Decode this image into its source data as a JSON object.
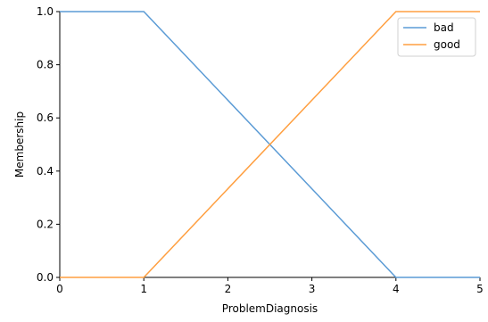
{
  "chart_data": {
    "type": "line",
    "xlabel": "ProblemDiagnosis",
    "ylabel": "Membership",
    "xlim": [
      0,
      5
    ],
    "ylim": [
      0,
      1
    ],
    "xticks": [
      "0",
      "1",
      "2",
      "3",
      "4",
      "5"
    ],
    "yticks": [
      "0.0",
      "0.2",
      "0.4",
      "0.6",
      "0.8",
      "1.0"
    ],
    "grid": false,
    "legend_position": "top-right",
    "series": [
      {
        "name": "bad",
        "color": "#5b9bd5",
        "x": [
          0,
          1,
          4,
          5
        ],
        "y": [
          1.0,
          1.0,
          0.0,
          0.0
        ]
      },
      {
        "name": "good",
        "color": "#ff9f40",
        "x": [
          0,
          1,
          4,
          5
        ],
        "y": [
          0.0,
          0.0,
          1.0,
          1.0
        ]
      }
    ]
  }
}
